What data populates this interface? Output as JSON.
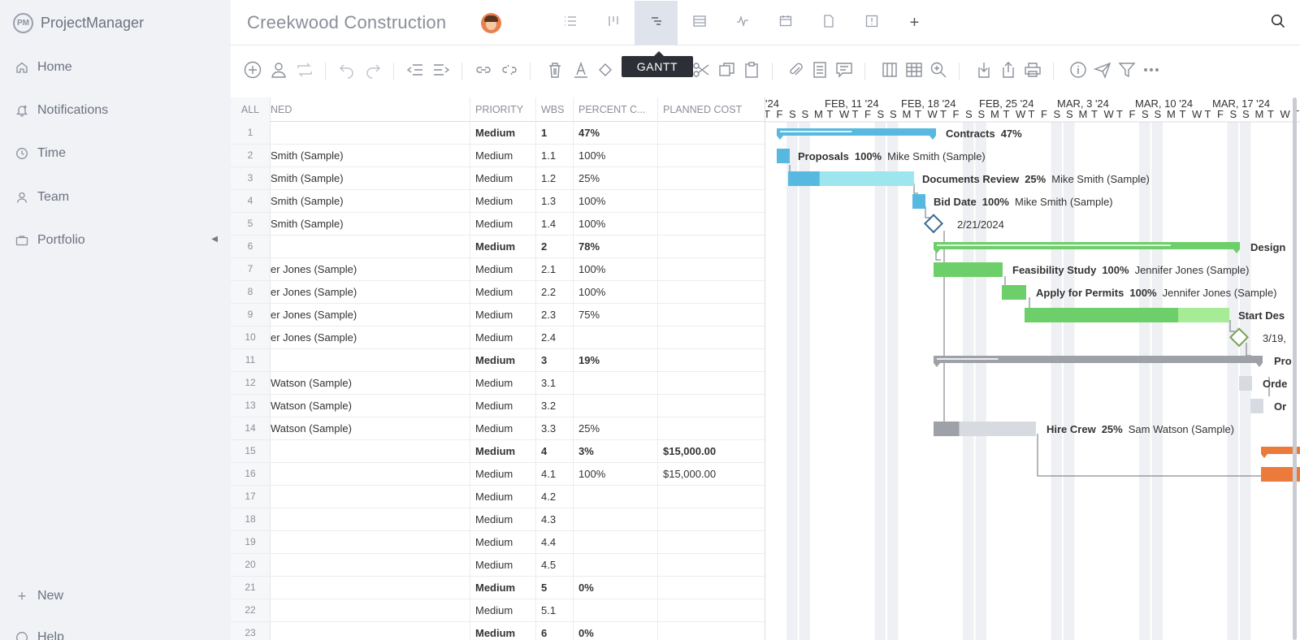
{
  "app": {
    "name": "ProjectManager",
    "logo_mark": "PM"
  },
  "sidebar": {
    "items": [
      {
        "label": "Home",
        "icon": "home-icon"
      },
      {
        "label": "Notifications",
        "icon": "bell-icon"
      },
      {
        "label": "Time",
        "icon": "clock-icon"
      },
      {
        "label": "Team",
        "icon": "user-icon"
      },
      {
        "label": "Portfolio",
        "icon": "briefcase-icon"
      }
    ],
    "new_label": "New",
    "help_label": "Help"
  },
  "header": {
    "title": "Creekwood Construction",
    "active_view": "GANTT",
    "add_label": "+"
  },
  "tooltip": "GANTT",
  "table": {
    "headers": {
      "all": "ALL",
      "assigned": "NED",
      "priority": "PRIORITY",
      "wbs": "WBS",
      "percent": "PERCENT C...",
      "cost": "PLANNED COST"
    },
    "rows": [
      {
        "n": "1",
        "assigned": "",
        "priority": "Medium",
        "wbs": "1",
        "pct": "47%",
        "cost": "",
        "bold": true
      },
      {
        "n": "2",
        "assigned": "Smith (Sample)",
        "priority": "Medium",
        "wbs": "1.1",
        "pct": "100%",
        "cost": "",
        "bold": false
      },
      {
        "n": "3",
        "assigned": "Smith (Sample)",
        "priority": "Medium",
        "wbs": "1.2",
        "pct": "25%",
        "cost": "",
        "bold": false
      },
      {
        "n": "4",
        "assigned": "Smith (Sample)",
        "priority": "Medium",
        "wbs": "1.3",
        "pct": "100%",
        "cost": "",
        "bold": false
      },
      {
        "n": "5",
        "assigned": "Smith (Sample)",
        "priority": "Medium",
        "wbs": "1.4",
        "pct": "100%",
        "cost": "",
        "bold": false
      },
      {
        "n": "6",
        "assigned": "",
        "priority": "Medium",
        "wbs": "2",
        "pct": "78%",
        "cost": "",
        "bold": true
      },
      {
        "n": "7",
        "assigned": "er Jones (Sample)",
        "priority": "Medium",
        "wbs": "2.1",
        "pct": "100%",
        "cost": "",
        "bold": false
      },
      {
        "n": "8",
        "assigned": "er Jones (Sample)",
        "priority": "Medium",
        "wbs": "2.2",
        "pct": "100%",
        "cost": "",
        "bold": false
      },
      {
        "n": "9",
        "assigned": "er Jones (Sample)",
        "priority": "Medium",
        "wbs": "2.3",
        "pct": "75%",
        "cost": "",
        "bold": false
      },
      {
        "n": "10",
        "assigned": "er Jones (Sample)",
        "priority": "Medium",
        "wbs": "2.4",
        "pct": "",
        "cost": "",
        "bold": false
      },
      {
        "n": "11",
        "assigned": "",
        "priority": "Medium",
        "wbs": "3",
        "pct": "19%",
        "cost": "",
        "bold": true
      },
      {
        "n": "12",
        "assigned": "Watson (Sample)",
        "priority": "Medium",
        "wbs": "3.1",
        "pct": "",
        "cost": "",
        "bold": false
      },
      {
        "n": "13",
        "assigned": "Watson (Sample)",
        "priority": "Medium",
        "wbs": "3.2",
        "pct": "",
        "cost": "",
        "bold": false
      },
      {
        "n": "14",
        "assigned": "Watson (Sample)",
        "priority": "Medium",
        "wbs": "3.3",
        "pct": "25%",
        "cost": "",
        "bold": false
      },
      {
        "n": "15",
        "assigned": "",
        "priority": "Medium",
        "wbs": "4",
        "pct": "3%",
        "cost": "$15,000.00",
        "bold": true
      },
      {
        "n": "16",
        "assigned": "",
        "priority": "Medium",
        "wbs": "4.1",
        "pct": "100%",
        "cost": "$15,000.00",
        "bold": false
      },
      {
        "n": "17",
        "assigned": "",
        "priority": "Medium",
        "wbs": "4.2",
        "pct": "",
        "cost": "",
        "bold": false
      },
      {
        "n": "18",
        "assigned": "",
        "priority": "Medium",
        "wbs": "4.3",
        "pct": "",
        "cost": "",
        "bold": false
      },
      {
        "n": "19",
        "assigned": "",
        "priority": "Medium",
        "wbs": "4.4",
        "pct": "",
        "cost": "",
        "bold": false
      },
      {
        "n": "20",
        "assigned": "",
        "priority": "Medium",
        "wbs": "4.5",
        "pct": "",
        "cost": "",
        "bold": false
      },
      {
        "n": "21",
        "assigned": "",
        "priority": "Medium",
        "wbs": "5",
        "pct": "0%",
        "cost": "",
        "bold": true
      },
      {
        "n": "22",
        "assigned": "",
        "priority": "Medium",
        "wbs": "5.1",
        "pct": "",
        "cost": "",
        "bold": false
      },
      {
        "n": "23",
        "assigned": "",
        "priority": "Medium",
        "wbs": "6",
        "pct": "0%",
        "cost": "",
        "bold": true
      }
    ]
  },
  "gantt": {
    "week_labels": [
      "'24",
      "FEB, 11 '24",
      "FEB, 18 '24",
      "FEB, 25 '24",
      "MAR, 3 '24",
      "MAR, 10 '24",
      "MAR, 17 '24"
    ],
    "day_letters": [
      "T",
      "F",
      "S",
      "S",
      "M",
      "T",
      "W",
      "T",
      "F",
      "S",
      "S",
      "M",
      "T",
      "W",
      "T",
      "F",
      "S",
      "S",
      "M",
      "T",
      "W",
      "T",
      "F",
      "S",
      "S",
      "M",
      "T",
      "W",
      "T",
      "F",
      "S",
      "S",
      "M",
      "T",
      "W",
      "T",
      "F",
      "S",
      "S",
      "M",
      "T",
      "W",
      "T",
      "F",
      "S",
      "S",
      "M",
      "T",
      "W",
      "T",
      "F"
    ],
    "colors": {
      "blue": "#58b9e0",
      "blue_light": "#9ee6ee",
      "green": "#6dcf6a",
      "green_light": "#a6eb96",
      "gray": "#9ea1a8",
      "gray_light": "#d7dbe1",
      "orange": "#ec7a3b",
      "milestone_blue": "#3d6b93",
      "milestone_green": "#7aa25a"
    },
    "tasks": [
      {
        "row": 0,
        "name": "Contracts",
        "pct": "47%",
        "owner": "",
        "kind": "summary",
        "color": "blue"
      },
      {
        "row": 1,
        "name": "Proposals",
        "pct": "100%",
        "owner": "Mike Smith (Sample)",
        "kind": "task",
        "color": "blue"
      },
      {
        "row": 2,
        "name": "Documents Review",
        "pct": "25%",
        "owner": "Mike Smith (Sample)",
        "kind": "task",
        "color": "blue"
      },
      {
        "row": 3,
        "name": "Bid Date",
        "pct": "100%",
        "owner": "Mike Smith (Sample)",
        "kind": "task",
        "color": "blue"
      },
      {
        "row": 4,
        "name": "2/21/2024",
        "pct": "",
        "owner": "",
        "kind": "milestone",
        "color": "milestone_blue"
      },
      {
        "row": 5,
        "name": "Design",
        "pct": "",
        "owner": "",
        "kind": "summary",
        "color": "green"
      },
      {
        "row": 6,
        "name": "Feasibility Study",
        "pct": "100%",
        "owner": "Jennifer Jones (Sample)",
        "kind": "task",
        "color": "green"
      },
      {
        "row": 7,
        "name": "Apply for Permits",
        "pct": "100%",
        "owner": "Jennifer Jones (Sample)",
        "kind": "task",
        "color": "green"
      },
      {
        "row": 8,
        "name": "Start Des",
        "pct": "",
        "owner": "",
        "kind": "task",
        "color": "green"
      },
      {
        "row": 9,
        "name": "3/19,",
        "pct": "",
        "owner": "",
        "kind": "milestone",
        "color": "milestone_green"
      },
      {
        "row": 10,
        "name": "Pro",
        "pct": "",
        "owner": "",
        "kind": "summary",
        "color": "gray"
      },
      {
        "row": 11,
        "name": "Orde",
        "pct": "",
        "owner": "",
        "kind": "task",
        "color": "gray"
      },
      {
        "row": 12,
        "name": "Or",
        "pct": "",
        "owner": "",
        "kind": "task",
        "color": "gray"
      },
      {
        "row": 13,
        "name": "Hire Crew",
        "pct": "25%",
        "owner": "Sam Watson (Sample)",
        "kind": "task",
        "color": "gray"
      },
      {
        "row": 14,
        "name": "",
        "pct": "",
        "owner": "",
        "kind": "summary",
        "color": "orange"
      },
      {
        "row": 15,
        "name": "",
        "pct": "",
        "owner": "",
        "kind": "task",
        "color": "orange"
      }
    ]
  }
}
